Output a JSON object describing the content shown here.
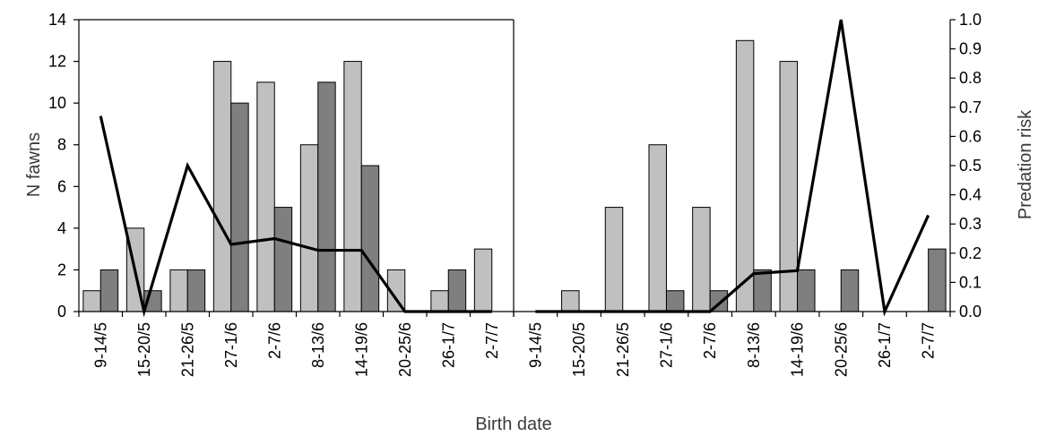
{
  "chart_data": [
    {
      "type": "bar",
      "panel": "left",
      "categories": [
        "9-14/5",
        "15-20/5",
        "21-26/5",
        "27-1/6",
        "2-7/6",
        "8-13/6",
        "14-19/6",
        "20-25/6",
        "26-1/7",
        "2-7/7"
      ],
      "series": [
        {
          "values": [
            1,
            4,
            2,
            12,
            11,
            8,
            12,
            2,
            1,
            3
          ],
          "color": "#c0c0c0",
          "kind": "bar"
        },
        {
          "values": [
            2,
            1,
            2,
            10,
            5,
            11,
            7,
            0,
            2,
            0
          ],
          "color": "#7f7f7f",
          "kind": "bar"
        },
        {
          "values": [
            0.67,
            0.0,
            0.5,
            0.23,
            0.25,
            0.21,
            0.21,
            0.0,
            0.0,
            0.0
          ],
          "color": "#000000",
          "kind": "line",
          "axis": "right"
        }
      ],
      "ylim": [
        0,
        14
      ],
      "y2lim": [
        0,
        1.0
      ]
    },
    {
      "type": "bar",
      "panel": "right",
      "categories": [
        "9-14/5",
        "15-20/5",
        "21-26/5",
        "27-1/6",
        "2-7/6",
        "8-13/6",
        "14-19/6",
        "20-25/6",
        "26-1/7",
        "2-7/7"
      ],
      "series": [
        {
          "values": [
            0,
            1,
            5,
            8,
            5,
            13,
            12,
            0,
            0,
            0
          ],
          "color": "#c0c0c0",
          "kind": "bar"
        },
        {
          "values": [
            0,
            0,
            0,
            1,
            1,
            2,
            2,
            2,
            0,
            3
          ],
          "color": "#7f7f7f",
          "kind": "bar"
        },
        {
          "values": [
            0.0,
            0.0,
            0.0,
            0.0,
            0.0,
            0.13,
            0.14,
            1.0,
            0.0,
            0.33
          ],
          "color": "#000000",
          "kind": "line",
          "axis": "right"
        }
      ],
      "ylim": [
        0,
        14
      ],
      "y2lim": [
        0,
        1.0
      ]
    }
  ],
  "axes": {
    "ylabel": "N fawns",
    "y2label": "Predation risk",
    "xlabel": "Birth date",
    "yticks": [
      "0",
      "2",
      "4",
      "6",
      "8",
      "10",
      "12",
      "14"
    ],
    "y2ticks": [
      "0.0",
      "0.1",
      "0.2",
      "0.3",
      "0.4",
      "0.5",
      "0.6",
      "0.7",
      "0.8",
      "0.9",
      "1.0"
    ]
  }
}
